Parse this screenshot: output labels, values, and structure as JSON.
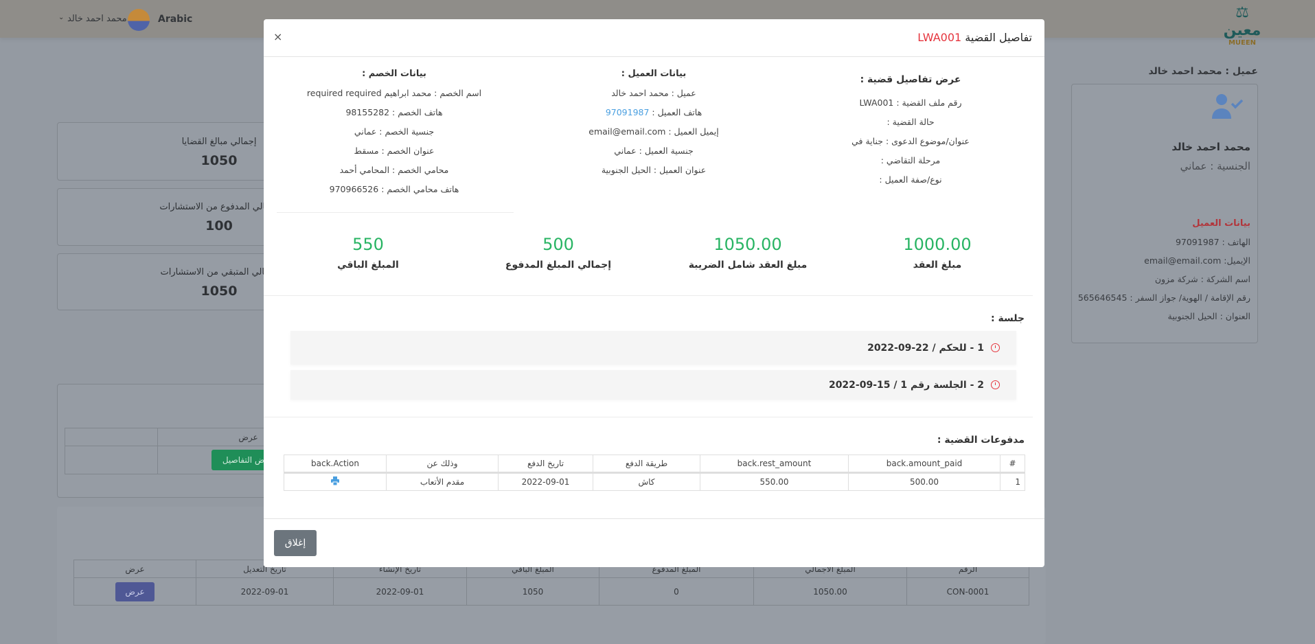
{
  "topbar": {
    "language": "Arabic",
    "user_name": "محمد احمد خالد",
    "logo_text": "MUEEN"
  },
  "background": {
    "stat_cards": [
      {
        "title": "إجمالي مبالغ القضايا",
        "value": "1050"
      },
      {
        "title": "إجمالي المدفوع من الاستشارات",
        "value": "100"
      },
      {
        "title": "إجمالي المتبقي من الاستشارات",
        "value": "1050"
      }
    ],
    "cases_table": {
      "header": "عرض",
      "button": "عرض التفاصيل"
    },
    "contracts_table": {
      "headers": [
        "الرقم",
        "المبلغ الاجمالي",
        "المبلغ المدفوع",
        "المبلغ الباقي",
        "تاريخ الإنشاء",
        "تاريخ التعديل",
        "عرض"
      ],
      "row": [
        "CON-0001",
        "1050.00",
        "0",
        "1050",
        "2022-09-01",
        "2022-09-01"
      ],
      "button": "عرض"
    },
    "client_panel": {
      "heading": "عميل : محمد احمد خالد",
      "name": "محمد احمد خالد",
      "nationality": "الجنسية : عماني",
      "section_title": "بيانات العميل",
      "lines": [
        "الهاتف : 97091987",
        "الإيميل: email@email.com",
        "اسم الشركة : شركة مزون",
        "رقم الإقامة / الهوية/ جواز السفر : 565646545",
        "العنوان : الحيل الجنوبية"
      ]
    }
  },
  "modal": {
    "title": "تفاصيل القضية",
    "case_code": "LWA001",
    "close_symbol": "×",
    "case_details": {
      "heading": "عرض تفاصيل قضية :",
      "rows": [
        "رقم ملف القضية : LWA001",
        "حالة القضية :",
        "عنوان/موضوع الدعوى : جناية في",
        "مرحلة التقاضي :",
        "نوع/صفة العميل :"
      ]
    },
    "client_info": {
      "heading": "بيانات العميل :",
      "rows": [
        "عميل : محمد احمد خالد"
      ],
      "phone_label": "هاتف العميل : ",
      "phone": "97091987",
      "rows2": [
        "إيميل العميل : email@email.com",
        "جنسية العميل : عماني",
        "عنوان العميل : الحيل الجنوبية"
      ]
    },
    "opponent_info": {
      "heading": "بيانات الخصم :",
      "rows": [
        "اسم الخصم : محمد ابراهيم required required",
        "هاتف الخصم : 98155282",
        "جنسية الخصم : عماني",
        "عنوان الخصم : مسقط",
        "محامي الخصم : المحامي أحمد",
        "هاتف محامي الخصم : 970966526"
      ]
    },
    "amounts": [
      {
        "value": "1000.00",
        "label": "مبلغ العقد"
      },
      {
        "value": "1050.00",
        "label": "مبلغ العقد شامل الضريبة"
      },
      {
        "value": "500",
        "label": "إجمالي المبلغ المدفوع"
      },
      {
        "value": "550",
        "label": "المبلغ الباقي"
      }
    ],
    "sessions_heading": "جلسة :",
    "sessions": [
      "1 - للحكم / 22-09-2022",
      "2 - الجلسة رقم 1 / 15-09-2022"
    ],
    "payments_heading": "مدفوعات القضية :",
    "payments": {
      "headers": [
        "#",
        "back.amount_paid",
        "back.rest_amount",
        "طريقة الدفع",
        "تاريخ الدفع",
        "وذلك عن",
        "back.Action"
      ],
      "rows": [
        [
          "1",
          "500.00",
          "550.00",
          "كاش",
          "2022-09-01",
          "مقدم الأتعاب"
        ]
      ]
    },
    "close_button": "إغلاق"
  },
  "colors": {
    "accent_red": "#e5343d",
    "amount_green": "#28b463",
    "link_blue": "#4a9fe0",
    "close_button": "#6c757d"
  }
}
